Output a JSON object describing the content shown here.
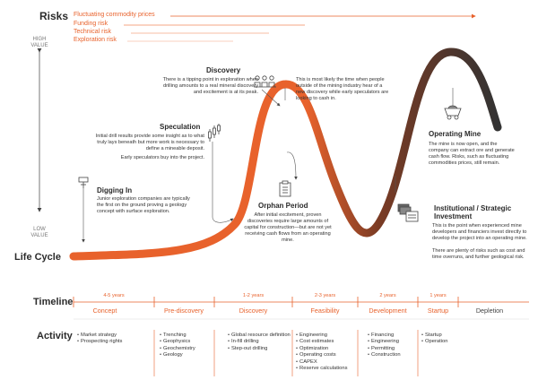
{
  "risks": {
    "heading": "Risks",
    "items": [
      "Fluctuating commodity prices",
      "Funding risk",
      "Technical risk",
      "Exploration risk"
    ]
  },
  "value_axis": {
    "high": "HIGH VALUE",
    "low": "LOW VALUE"
  },
  "life_cycle_label": "Life Cycle",
  "stages": {
    "discovery": {
      "title": "Discovery",
      "body": "There is a tipping point in exploration when drilling amounts to a real mineral discovery and excitement is at its peak."
    },
    "discovery_note": {
      "body": "This is most likely the time when people outside of the mining industry hear of a new discovery while early speculators are looking to cash in."
    },
    "speculation": {
      "title": "Speculation",
      "body": "Initial drill results provide some insight as to what truly lays beneath but more work is necessary to define a mineable deposit.",
      "body2": "Early speculators buy into the project."
    },
    "digging_in": {
      "title": "Digging In",
      "body": "Junior exploration companies are typically the first on the ground proving a geology concept with surface exploration."
    },
    "orphan_period": {
      "title": "Orphan Period",
      "body": "After initial excitement, proven discoveries require large amounts of capital for construction—but are not yet receiving cash flows from an operating mine."
    },
    "operating_mine": {
      "title": "Operating Mine",
      "body": "The mine is now open, and the company can extract ore and generate cash flow. Risks, such as fluctuating commodities prices, still remain."
    },
    "institutional": {
      "title": "Institutional / Strategic Investment",
      "body": "This is the point when experienced mine developers and financiers invest directly to develop the project into an operating mine.",
      "body2": "There are plenty of risks such as cost and time overruns, and further geological risk."
    }
  },
  "timeline": {
    "heading": "Timeline",
    "years": [
      "4-5 years",
      "1-2 years",
      "2-3 years",
      "2 years",
      "1 years"
    ],
    "phases": [
      "Concept",
      "Pre-discovery",
      "Discovery",
      "Feasibility",
      "Development",
      "Startup",
      "Depletion"
    ]
  },
  "activity": {
    "heading": "Activity",
    "columns": [
      [
        "Market strategy",
        "Prospecting rights"
      ],
      [
        "Trenching",
        "Geophysics",
        "Geochemistry",
        "Geology"
      ],
      [
        "Global resource definition",
        "In-fill drilling",
        "Step-out drilling"
      ],
      [
        "Engineering",
        "Cost estimates",
        "Optimization",
        "Operating costs",
        "CAPEX",
        "Reserve calculations"
      ],
      [
        "Financing",
        "Engineering",
        "Permitting",
        "Construction"
      ],
      [
        "Startup",
        "Operation"
      ]
    ]
  },
  "colors": {
    "accent": "#e8622c",
    "dark": "#3a3a3a",
    "risk_lines": [
      "#e8622c",
      "#f08a5d",
      "#f4a888",
      "#f7c2aa"
    ]
  },
  "icons": [
    "drill-rig-icon",
    "candlestick-chart-icon",
    "investors-icon",
    "clipboard-icon",
    "mine-cart-icon",
    "money-document-icon"
  ]
}
